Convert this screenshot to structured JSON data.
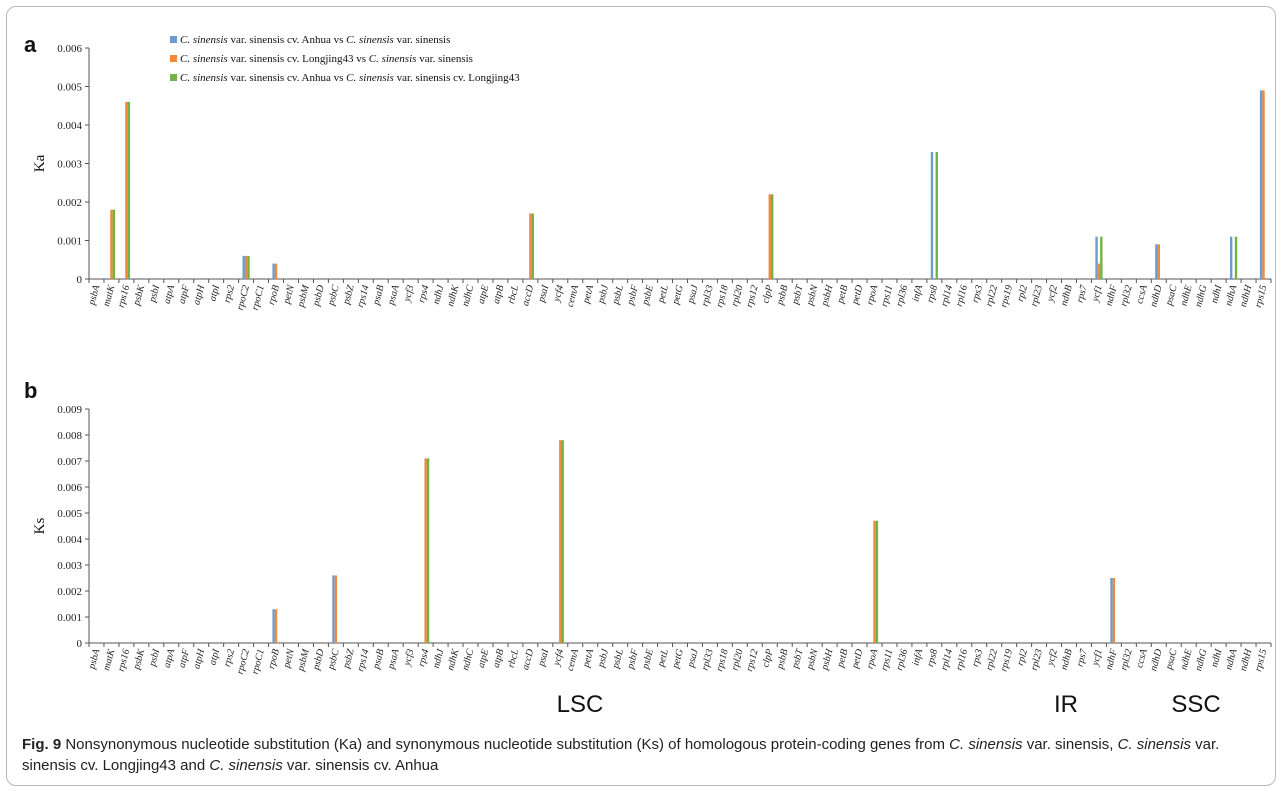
{
  "colors": {
    "series1": "#6c9bd2",
    "series2": "#ef8a3c",
    "series3": "#72b143",
    "axis": "#555555"
  },
  "genes_a": [
    "psbA",
    "matK",
    "rps16",
    "psbK",
    "psbI",
    "atpA",
    "atpF",
    "atpH",
    "atpI",
    "rps2",
    "rpoC2",
    "rpoC1",
    "rpoB",
    "petN",
    "psbM",
    "psbD",
    "psbC",
    "psbZ",
    "rps14",
    "psaB",
    "psaA",
    "ycf3",
    "rps4",
    "ndhJ",
    "ndhK",
    "ndhC",
    "atpE",
    "atpB",
    "rbcL",
    "accD",
    "psaI",
    "ycf4",
    "cemA",
    "petA",
    "psbJ",
    "psbL",
    "psbF",
    "psbE",
    "petL",
    "petG",
    "psaJ",
    "rpl33",
    "rps18",
    "rpl20",
    "rps12",
    "clpP",
    "psbB",
    "psbT",
    "psbN",
    "psbH",
    "petB",
    "petD",
    "rpoA",
    "rps11",
    "rpl36",
    "infA",
    "rps8",
    "rpl14",
    "rpl16",
    "rps3",
    "rpl22",
    "rps19",
    "rpl2",
    "rpl23",
    "ycf2",
    "ndhB",
    "rps7",
    "ycf1",
    "ndhF",
    "rpl32",
    "ccsA",
    "ndhD",
    "psaC",
    "ndhE",
    "ndhG",
    "ndhI",
    "ndhA",
    "ndhH",
    "rps15"
  ],
  "genes_b": [
    "psbA",
    "matK",
    "rps16",
    "psbK",
    "psbI",
    "atpA",
    "atpF",
    "atpH",
    "atpI",
    "rps2",
    "rpoC2",
    "rpoC1",
    "rpoB",
    "petN",
    "psbM",
    "psbD",
    "psbC",
    "psbZ",
    "rps14",
    "psaB",
    "psaA",
    "ycf3",
    "rps4",
    "ndhJ",
    "ndhK",
    "ndhC",
    "atpE",
    "atpB",
    "rbcL",
    "accD",
    "psaI",
    "ycf4",
    "cemA",
    "petA",
    "psbJ",
    "psbL",
    "psbF",
    "psbE",
    "petL",
    "petG",
    "psaJ",
    "rpl33",
    "rps18",
    "rpl20",
    "rps12",
    "clpP",
    "psbB",
    "psbT",
    "psbN",
    "psbH",
    "petB",
    "petD",
    "rpoA",
    "rps11",
    "rpl36",
    "infA",
    "rps8",
    "rpl14",
    "rpl16",
    "rps3",
    "rpl22",
    "rps19",
    "rpl2",
    "rpl23",
    "ycf2",
    "ndhB",
    "rps7",
    "ycf1",
    "ndhF",
    "rpl32",
    "ccsA",
    "ndhD",
    "psaC",
    "ndhE",
    "ndhG",
    "ndhI",
    "ndhA",
    "ndhH",
    "rps15"
  ],
  "legend": [
    {
      "a": "C. sinensis",
      "b": " var. sinensis cv. Anhua vs ",
      "c": "C. sinensis",
      "d": " var. sinensis"
    },
    {
      "a": "C. sinensis",
      "b": " var. sinensis cv. Longjing43 vs ",
      "c": "C. sinensis",
      "d": " var. sinensis"
    },
    {
      "a": "C. sinensis",
      "b": " var. sinensis cv. Anhua vs ",
      "c": "C. sinensis",
      "d": " var. sinensis cv. Longjing43"
    }
  ],
  "chart_data": [
    {
      "type": "bar",
      "panel": "a",
      "ylabel": "Ka",
      "ylim": [
        0,
        0.006
      ],
      "yticks": [
        "0",
        "0.001",
        "0.002",
        "0.003",
        "0.004",
        "0.005",
        "0.006"
      ],
      "grid": false,
      "legend_position": "top-left",
      "series": [
        {
          "name": "C. sinensis var. sinensis cv. Anhua vs C. sinensis var. sinensis",
          "color": "#6c9bd2",
          "points": [
            {
              "gene": "rpoC2",
              "value": 0.0006
            },
            {
              "gene": "rpoB",
              "value": 0.0004
            },
            {
              "gene": "rps8",
              "value": 0.0033
            },
            {
              "gene": "ycf1",
              "value": 0.0011
            },
            {
              "gene": "ndhD",
              "value": 0.0009
            },
            {
              "gene": "ndhA",
              "value": 0.0011
            },
            {
              "gene": "rps15",
              "value": 0.0049
            }
          ]
        },
        {
          "name": "C. sinensis var. sinensis cv. Longjing43 vs C. sinensis var. sinensis",
          "color": "#ef8a3c",
          "points": [
            {
              "gene": "matK",
              "value": 0.0018
            },
            {
              "gene": "rps16",
              "value": 0.0046
            },
            {
              "gene": "rpoC2",
              "value": 0.0006
            },
            {
              "gene": "rpoB",
              "value": 0.0004
            },
            {
              "gene": "accD",
              "value": 0.0017
            },
            {
              "gene": "clpP",
              "value": 0.0022
            },
            {
              "gene": "ycf1",
              "value": 0.0004
            },
            {
              "gene": "ndhD",
              "value": 0.0009
            },
            {
              "gene": "rps15",
              "value": 0.0049
            }
          ]
        },
        {
          "name": "C. sinensis var. sinensis cv. Anhua vs C. sinensis var. sinensis cv. Longjing43",
          "color": "#72b143",
          "points": [
            {
              "gene": "matK",
              "value": 0.0018
            },
            {
              "gene": "rps16",
              "value": 0.0046
            },
            {
              "gene": "rpoC2",
              "value": 0.0006
            },
            {
              "gene": "accD",
              "value": 0.0017
            },
            {
              "gene": "clpP",
              "value": 0.0022
            },
            {
              "gene": "rps8",
              "value": 0.0033
            },
            {
              "gene": "ycf1",
              "value": 0.0011
            },
            {
              "gene": "ndhA",
              "value": 0.0011
            }
          ]
        }
      ]
    },
    {
      "type": "bar",
      "panel": "b",
      "ylabel": "Ks",
      "ylim": [
        0,
        0.009
      ],
      "yticks": [
        "0",
        "0.001",
        "0.002",
        "0.003",
        "0.004",
        "0.005",
        "0.006",
        "0.007",
        "0.008",
        "0.009"
      ],
      "grid": false,
      "series": [
        {
          "name": "C. sinensis var. sinensis cv. Anhua vs C. sinensis var. sinensis",
          "color": "#6c9bd2",
          "points": [
            {
              "gene": "rpoB",
              "value": 0.0013
            },
            {
              "gene": "psbC",
              "value": 0.0026
            },
            {
              "gene": "ndhF",
              "value": 0.0025
            }
          ]
        },
        {
          "name": "C. sinensis var. sinensis cv. Longjing43 vs C. sinensis var. sinensis",
          "color": "#ef8a3c",
          "points": [
            {
              "gene": "rpoB",
              "value": 0.0013
            },
            {
              "gene": "psbC",
              "value": 0.0026
            },
            {
              "gene": "rps4",
              "value": 0.0071
            },
            {
              "gene": "ycf4",
              "value": 0.0078
            },
            {
              "gene": "rpoA",
              "value": 0.0047
            },
            {
              "gene": "ndhF",
              "value": 0.0025
            }
          ]
        },
        {
          "name": "C. sinensis var. sinensis cv. Anhua vs C. sinensis var. sinensis cv. Longjing43",
          "color": "#72b143",
          "points": [
            {
              "gene": "rps4",
              "value": 0.0071
            },
            {
              "gene": "ycf4",
              "value": 0.0078
            },
            {
              "gene": "rpoA",
              "value": 0.0047
            }
          ]
        }
      ]
    }
  ],
  "region_labels": [
    "LSC",
    "IR",
    "SSC"
  ],
  "caption": {
    "fig": "Fig. 9",
    "p1": "  Nonsynonymous nucleotide substitution (Ka) and synonymous nucleotide substitution (Ks) of homologous protein-coding genes from ",
    "s1": "C. sinensis",
    "p2": " var. sinensis, ",
    "s2": "C. sinensis",
    "p3": " var. sinensis cv. Longjing43 and ",
    "s3": "C. sinensis",
    "p4": " var. sinensis cv. Anhua"
  }
}
